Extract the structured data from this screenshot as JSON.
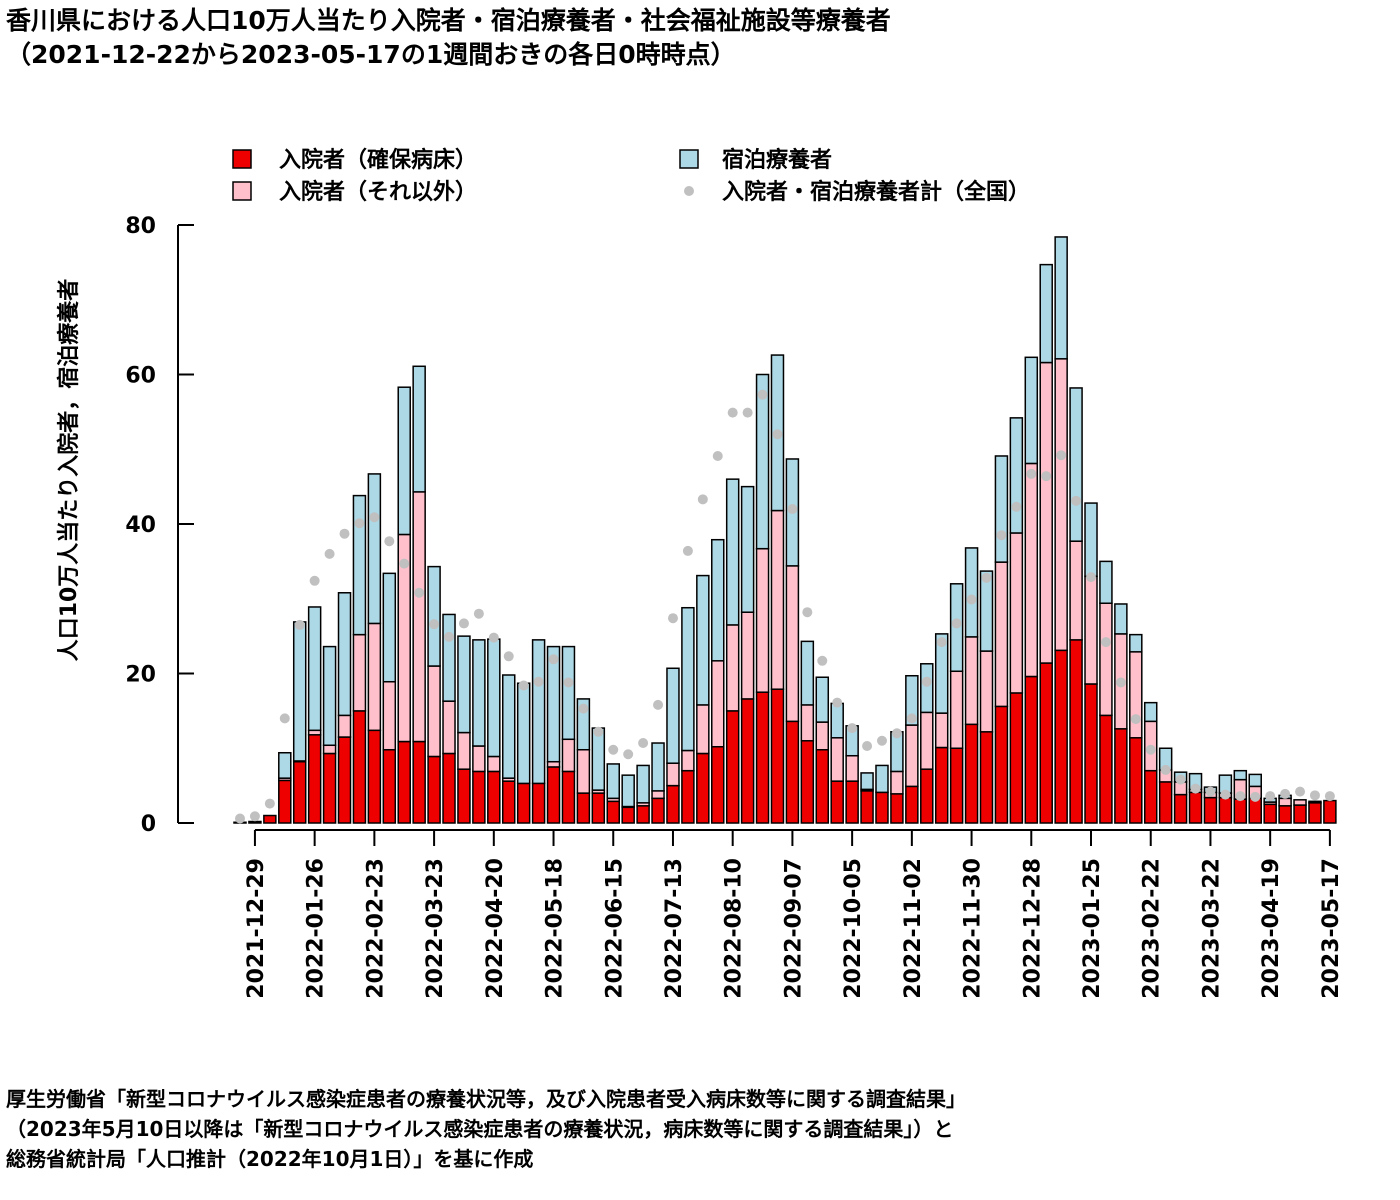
{
  "title": "香川県における人口10万人当たり入院者・宿泊療養者・社会福祉施設等療養者\n（2021-12-22から2023-05-17の1週間おきの各日0時時点）",
  "source_note": "厚生労働省「新型コロナウイルス感染症患者の療養状況等，及び入院患者受入病床数等に関する調査結果」\n（2023年5月10日以降は「新型コロナウイルス感染症患者の療養状況，病床数等に関する調査結果」）と\n総務省統計局「人口推計（2022年10月1日）」を基に作成",
  "chart_data": {
    "type": "bar",
    "stacked": true,
    "ylabel": "人口10万人当たり入院者，宿泊療養者",
    "xlabel": "",
    "ylim": [
      0,
      80
    ],
    "yticks": [
      0,
      20,
      40,
      60,
      80
    ],
    "grid": false,
    "legend_position": "top",
    "x_tick_labels": [
      "2021-12-29",
      "2022-01-26",
      "2022-02-23",
      "2022-03-23",
      "2022-04-20",
      "2022-05-18",
      "2022-06-15",
      "2022-07-13",
      "2022-08-10",
      "2022-09-07",
      "2022-10-05",
      "2022-11-02",
      "2022-11-30",
      "2022-12-28",
      "2023-01-25",
      "2023-02-22",
      "2023-03-22",
      "2023-04-19",
      "2023-05-17"
    ],
    "x_tick_positions": [
      1,
      5,
      9,
      13,
      17,
      21,
      25,
      29,
      33,
      37,
      41,
      45,
      49,
      53,
      57,
      61,
      65,
      69,
      73
    ],
    "categories": [
      "2021-12-22",
      "2021-12-29",
      "2022-01-05",
      "2022-01-12",
      "2022-01-19",
      "2022-01-26",
      "2022-02-02",
      "2022-02-09",
      "2022-02-16",
      "2022-02-23",
      "2022-03-02",
      "2022-03-09",
      "2022-03-16",
      "2022-03-23",
      "2022-03-30",
      "2022-04-06",
      "2022-04-13",
      "2022-04-20",
      "2022-04-27",
      "2022-05-04",
      "2022-05-11",
      "2022-05-18",
      "2022-05-25",
      "2022-06-01",
      "2022-06-08",
      "2022-06-15",
      "2022-06-22",
      "2022-06-29",
      "2022-07-06",
      "2022-07-13",
      "2022-07-20",
      "2022-07-27",
      "2022-08-03",
      "2022-08-10",
      "2022-08-17",
      "2022-08-24",
      "2022-08-31",
      "2022-09-07",
      "2022-09-14",
      "2022-09-21",
      "2022-09-28",
      "2022-10-05",
      "2022-10-12",
      "2022-10-19",
      "2022-10-26",
      "2022-11-02",
      "2022-11-09",
      "2022-11-16",
      "2022-11-23",
      "2022-11-30",
      "2022-12-07",
      "2022-12-14",
      "2022-12-21",
      "2022-12-28",
      "2023-01-04",
      "2023-01-11",
      "2023-01-18",
      "2023-01-25",
      "2023-02-01",
      "2023-02-08",
      "2023-02-15",
      "2023-02-22",
      "2023-03-01",
      "2023-03-08",
      "2023-03-15",
      "2023-03-22",
      "2023-03-29",
      "2023-04-05",
      "2023-04-12",
      "2023-04-19",
      "2023-04-26",
      "2023-05-03",
      "2023-05-10",
      "2023-05-17"
    ],
    "series": [
      {
        "name": "入院者（確保病床）",
        "color": "#ee0000",
        "values": [
          0.1,
          0.2,
          1.0,
          5.7,
          8.2,
          11.8,
          9.3,
          11.5,
          15.0,
          12.4,
          9.8,
          10.9,
          10.9,
          8.9,
          9.3,
          7.2,
          6.9,
          6.9,
          5.6,
          5.3,
          5.3,
          7.5,
          6.9,
          4.0,
          4.0,
          2.9,
          2.1,
          2.3,
          3.3,
          5.0,
          7.0,
          9.3,
          10.2,
          15.0,
          16.6,
          17.5,
          17.9,
          13.6,
          11.0,
          9.8,
          5.6,
          5.6,
          4.3,
          4.1,
          3.9,
          4.9,
          7.2,
          10.1,
          10.0,
          13.2,
          12.2,
          15.6,
          17.4,
          19.6,
          21.4,
          23.1,
          24.5,
          18.6,
          14.4,
          12.6,
          11.4,
          7.0,
          5.5,
          3.8,
          4.1,
          3.4,
          3.4,
          3.2,
          3.3,
          2.5,
          2.3,
          2.4,
          2.7,
          3.0
        ]
      },
      {
        "name": "入院者（それ以外）",
        "color": "#ffc0cb",
        "values": [
          0,
          0,
          0,
          0.3,
          0.1,
          0.6,
          1.1,
          2.9,
          10.2,
          14.3,
          9.1,
          27.7,
          33.4,
          12.1,
          7.0,
          4.9,
          3.4,
          2.0,
          0.4,
          0,
          0,
          0.7,
          4.3,
          5.8,
          0.4,
          0.4,
          0.1,
          0.4,
          1.0,
          3.0,
          2.7,
          6.5,
          11.5,
          11.5,
          11.6,
          19.2,
          23.9,
          20.8,
          4.8,
          3.7,
          5.8,
          3.4,
          0.2,
          0,
          3.0,
          8.2,
          7.6,
          4.6,
          10.3,
          11.7,
          10.8,
          19.3,
          21.4,
          28.5,
          40.2,
          39.0,
          13.2,
          14.4,
          15.0,
          12.7,
          11.5,
          6.6,
          1.6,
          1.7,
          0.4,
          0.7,
          0.6,
          2.6,
          1.6,
          0.3,
          1.0,
          0.7,
          0,
          0
        ]
      },
      {
        "name": "宿泊療養者",
        "color": "#add8e6",
        "values": [
          0,
          0,
          0,
          3.4,
          18.6,
          16.5,
          13.2,
          16.4,
          18.6,
          20.0,
          14.5,
          19.7,
          16.8,
          13.3,
          11.6,
          12.9,
          14.2,
          15.7,
          13.8,
          13.4,
          19.2,
          15.4,
          12.4,
          6.8,
          8.3,
          4.6,
          4.2,
          5.0,
          6.4,
          12.7,
          19.1,
          17.3,
          16.2,
          19.5,
          16.8,
          23.3,
          20.8,
          14.3,
          8.5,
          6.0,
          4.6,
          4.0,
          2.2,
          3.6,
          5.3,
          6.6,
          6.5,
          10.6,
          11.7,
          11.9,
          10.7,
          14.2,
          15.4,
          14.2,
          13.1,
          16.3,
          20.5,
          9.8,
          5.6,
          4.0,
          2.3,
          2.5,
          2.9,
          1.3,
          2.1,
          0.7,
          2.4,
          1.2,
          1.6,
          0.5,
          0.4,
          0,
          0.2,
          0
        ]
      },
      {
        "name": "入院者・宿泊療養者計（全国）",
        "color": "#c0c0c0",
        "type": "scatter",
        "values": [
          0.6,
          0.9,
          2.6,
          14.0,
          26.5,
          32.4,
          36.0,
          38.7,
          40.1,
          40.9,
          37.7,
          34.7,
          30.8,
          26.6,
          24.9,
          26.7,
          28.0,
          24.8,
          22.3,
          18.4,
          18.9,
          21.9,
          18.8,
          15.3,
          12.2,
          9.8,
          9.2,
          10.7,
          15.8,
          27.4,
          36.4,
          43.3,
          49.1,
          54.9,
          54.9,
          57.3,
          52.0,
          42.0,
          28.2,
          21.7,
          16.1,
          12.7,
          10.3,
          11.0,
          12.0,
          14.0,
          18.9,
          24.2,
          26.7,
          29.9,
          32.8,
          38.5,
          42.3,
          46.7,
          46.4,
          49.2,
          43.1,
          32.9,
          24.2,
          18.8,
          13.9,
          9.8,
          7.1,
          5.8,
          4.6,
          4.2,
          3.8,
          3.6,
          3.5,
          3.6,
          3.9,
          4.2,
          3.7,
          3.6
        ]
      }
    ]
  }
}
